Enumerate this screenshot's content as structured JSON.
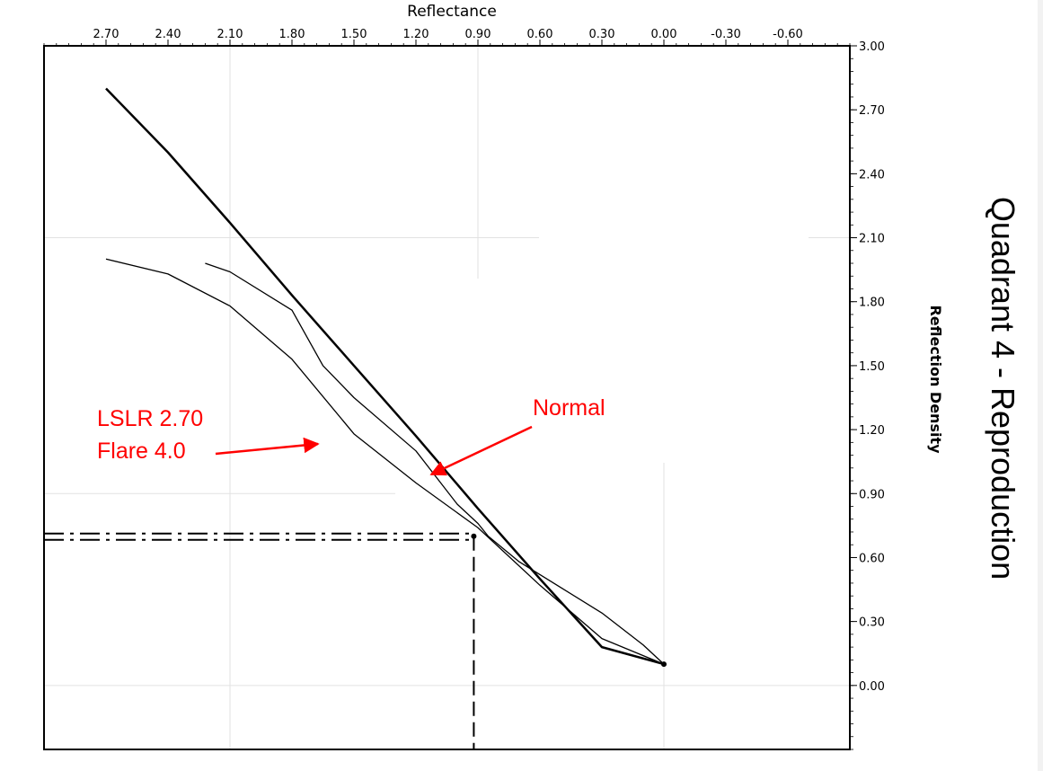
{
  "chart_data": {
    "type": "line",
    "title": "",
    "side_title": "Quadrant 4 - Reproduction",
    "xlabel": "Reflectance",
    "ylabel": "Reflection Density",
    "x_axis_reversed": true,
    "x_axis_position": "top",
    "y_axis_position": "right",
    "xlim": [
      3.0,
      -0.9
    ],
    "ylim": [
      -0.3,
      3.0
    ],
    "x_ticks": [
      "2.70",
      "2.40",
      "2.10",
      "1.80",
      "1.50",
      "1.20",
      "0.90",
      "0.60",
      "0.30",
      "0.00",
      "-0.30",
      "-0.60"
    ],
    "y_ticks": [
      "3.00",
      "2.70",
      "2.40",
      "2.10",
      "1.80",
      "1.50",
      "1.20",
      "0.90",
      "0.60",
      "0.30",
      "0.00"
    ],
    "grid": "partial",
    "series": [
      {
        "x": [
          2.7,
          2.4,
          2.1,
          1.8,
          1.5,
          1.2,
          0.9,
          0.6,
          0.3,
          0.0
        ],
        "y": [
          2.8,
          2.5,
          2.17,
          1.83,
          1.5,
          1.17,
          0.83,
          0.5,
          0.18,
          0.1
        ],
        "stroke": "#000000",
        "width": 2.5
      },
      {
        "x": [
          2.22,
          2.1,
          1.8,
          1.65,
          1.5,
          1.2,
          1.0,
          0.9,
          0.85,
          0.7,
          0.5,
          0.3,
          0.1,
          0.0
        ],
        "y": [
          1.98,
          1.94,
          1.76,
          1.5,
          1.35,
          1.1,
          0.85,
          0.76,
          0.7,
          0.58,
          0.46,
          0.34,
          0.19,
          0.1
        ],
        "stroke": "#000000",
        "width": 1.3
      },
      {
        "x": [
          2.7,
          2.4,
          2.1,
          1.8,
          1.5,
          1.2,
          0.9,
          0.6,
          0.3,
          0.0
        ],
        "y": [
          2.0,
          1.93,
          1.78,
          1.53,
          1.18,
          0.95,
          0.74,
          0.47,
          0.22,
          0.1
        ],
        "stroke": "#000000",
        "width": 1.3
      }
    ],
    "guide_lines": {
      "x": 0.92,
      "y": 0.7,
      "style": "dash-dot"
    },
    "annotations": [
      {
        "text": "LSLR 2.70",
        "color": "#ff0000"
      },
      {
        "text": "Flare 4.0",
        "color": "#ff0000"
      },
      {
        "text": "Normal",
        "color": "#ff0000"
      }
    ]
  }
}
